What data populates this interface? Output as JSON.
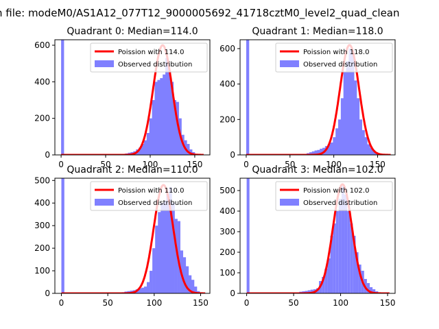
{
  "figure_title": "n file: modeM0/AS1A12_077T12_9000005692_41718cztM0_level2_quad_clean",
  "colors": {
    "observed_fill": "#8080ff",
    "poisson_line": "#ff0000",
    "axes": "#000000",
    "background": "#ffffff"
  },
  "chart_data": [
    {
      "type": "bar",
      "title": "Quadrant 0: Median=114.0",
      "xlabel": "",
      "ylabel": "",
      "xlim": [
        -7,
        167
      ],
      "ylim": [
        0,
        630
      ],
      "xticks": [
        0,
        50,
        100,
        150
      ],
      "yticks": [
        0,
        200,
        400,
        600
      ],
      "grid": false,
      "legend_position": "upper-right",
      "series": [
        {
          "name": "Poission with 114.0",
          "kind": "poisson",
          "mean": 114.0,
          "peak": 600,
          "x_range": [
            0,
            160
          ]
        },
        {
          "name": "Observed distribution",
          "kind": "histogram",
          "bin_width": 3.3,
          "bins": [
            [
              0,
              630
            ],
            [
              66,
              3
            ],
            [
              69,
              5
            ],
            [
              72,
              8
            ],
            [
              75,
              12
            ],
            [
              78,
              15
            ],
            [
              81,
              20
            ],
            [
              84,
              30
            ],
            [
              87,
              40
            ],
            [
              90,
              60
            ],
            [
              93,
              80
            ],
            [
              96,
              120
            ],
            [
              99,
              200
            ],
            [
              102,
              300
            ],
            [
              105,
              400
            ],
            [
              108,
              410
            ],
            [
              111,
              420
            ],
            [
              114,
              440
            ],
            [
              117,
              530
            ],
            [
              120,
              460
            ],
            [
              123,
              400
            ],
            [
              126,
              300
            ],
            [
              129,
              290
            ],
            [
              132,
              200
            ],
            [
              135,
              110
            ],
            [
              138,
              80
            ],
            [
              141,
              60
            ],
            [
              144,
              30
            ],
            [
              147,
              15
            ],
            [
              150,
              5
            ],
            [
              153,
              3
            ]
          ]
        }
      ]
    },
    {
      "type": "bar",
      "title": "Quadrant 1: Median=118.0",
      "xlabel": "",
      "ylabel": "",
      "xlim": [
        -7,
        170
      ],
      "ylim": [
        0,
        650
      ],
      "xticks": [
        0,
        50,
        100,
        150
      ],
      "yticks": [
        0,
        200,
        400,
        600
      ],
      "grid": false,
      "legend_position": "upper-right",
      "series": [
        {
          "name": "Poission with 118.0",
          "kind": "poisson",
          "mean": 118.0,
          "peak": 620,
          "x_range": [
            0,
            165
          ]
        },
        {
          "name": "Observed distribution",
          "kind": "histogram",
          "bin_width": 3.4,
          "bins": [
            [
              0,
              650
            ],
            [
              66,
              5
            ],
            [
              69,
              10
            ],
            [
              72,
              15
            ],
            [
              75,
              20
            ],
            [
              78,
              25
            ],
            [
              81,
              28
            ],
            [
              84,
              35
            ],
            [
              87,
              40
            ],
            [
              90,
              50
            ],
            [
              93,
              60
            ],
            [
              96,
              70
            ],
            [
              99,
              100
            ],
            [
              102,
              150
            ],
            [
              105,
              200
            ],
            [
              108,
              320
            ],
            [
              111,
              470
            ],
            [
              114,
              530
            ],
            [
              117,
              600
            ],
            [
              120,
              580
            ],
            [
              123,
              420
            ],
            [
              126,
              320
            ],
            [
              129,
              200
            ],
            [
              132,
              140
            ],
            [
              135,
              100
            ],
            [
              138,
              60
            ],
            [
              141,
              40
            ],
            [
              144,
              25
            ],
            [
              147,
              15
            ],
            [
              150,
              8
            ],
            [
              153,
              5
            ],
            [
              156,
              3
            ]
          ]
        }
      ]
    },
    {
      "type": "bar",
      "title": "Quadrant 2: Median=110.0",
      "xlabel": "",
      "ylabel": "",
      "xlim": [
        -7,
        160
      ],
      "ylim": [
        0,
        510
      ],
      "xticks": [
        0,
        50,
        100,
        150
      ],
      "yticks": [
        0,
        100,
        200,
        300,
        400,
        500
      ],
      "grid": false,
      "legend_position": "upper-right",
      "series": [
        {
          "name": "Poission with 110.0",
          "kind": "poisson",
          "mean": 110.0,
          "peak": 480,
          "x_range": [
            0,
            155
          ]
        },
        {
          "name": "Observed distribution",
          "kind": "histogram",
          "bin_width": 3.2,
          "bins": [
            [
              0,
              510
            ],
            [
              62,
              3
            ],
            [
              65,
              5
            ],
            [
              68,
              8
            ],
            [
              71,
              10
            ],
            [
              74,
              12
            ],
            [
              77,
              14
            ],
            [
              80,
              18
            ],
            [
              83,
              22
            ],
            [
              86,
              25
            ],
            [
              89,
              30
            ],
            [
              92,
              50
            ],
            [
              95,
              100
            ],
            [
              98,
              200
            ],
            [
              101,
              300
            ],
            [
              104,
              360
            ],
            [
              107,
              400
            ],
            [
              110,
              410
            ],
            [
              113,
              440
            ],
            [
              116,
              470
            ],
            [
              119,
              400
            ],
            [
              122,
              330
            ],
            [
              125,
              320
            ],
            [
              128,
              190
            ],
            [
              131,
              160
            ],
            [
              134,
              120
            ],
            [
              137,
              80
            ],
            [
              140,
              60
            ],
            [
              143,
              30
            ],
            [
              146,
              10
            ],
            [
              149,
              3
            ]
          ]
        }
      ]
    },
    {
      "type": "bar",
      "title": "Quadrant 3: Median=102.0",
      "xlabel": "",
      "ylabel": "",
      "xlim": [
        -7,
        158
      ],
      "ylim": [
        0,
        560
      ],
      "xticks": [
        0,
        50,
        100,
        150
      ],
      "yticks": [
        0,
        100,
        200,
        300,
        400,
        500
      ],
      "grid": false,
      "legend_position": "upper-right",
      "series": [
        {
          "name": "Poission with 102.0",
          "kind": "poisson",
          "mean": 102.0,
          "peak": 530,
          "x_range": [
            0,
            152
          ]
        },
        {
          "name": "Observed distribution",
          "kind": "histogram",
          "bin_width": 3.0,
          "bins": [
            [
              0,
              560
            ],
            [
              50,
              3
            ],
            [
              53,
              5
            ],
            [
              56,
              8
            ],
            [
              59,
              10
            ],
            [
              62,
              12
            ],
            [
              65,
              15
            ],
            [
              68,
              18
            ],
            [
              71,
              20
            ],
            [
              74,
              25
            ],
            [
              77,
              60
            ],
            [
              80,
              80
            ],
            [
              83,
              120
            ],
            [
              86,
              170
            ],
            [
              89,
              280
            ],
            [
              92,
              340
            ],
            [
              95,
              400
            ],
            [
              98,
              460
            ],
            [
              101,
              520
            ],
            [
              104,
              480
            ],
            [
              107,
              400
            ],
            [
              110,
              340
            ],
            [
              113,
              280
            ],
            [
              116,
              200
            ],
            [
              119,
              140
            ],
            [
              122,
              110
            ],
            [
              125,
              70
            ],
            [
              128,
              50
            ],
            [
              131,
              30
            ],
            [
              134,
              20
            ],
            [
              137,
              10
            ],
            [
              140,
              5
            ]
          ]
        }
      ]
    }
  ]
}
